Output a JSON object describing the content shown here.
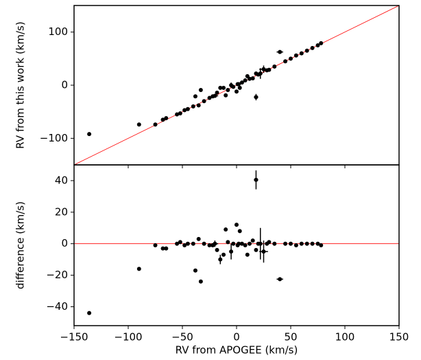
{
  "chart_data": [
    {
      "type": "scatter",
      "ylabel": "RV from this work (km/s)",
      "color": "#000000",
      "line_color": "#ff0000",
      "diagonal": true,
      "xlim": [
        -150,
        150
      ],
      "ylim": [
        -150,
        150
      ],
      "xticks": [
        -150,
        -100,
        -50,
        0,
        50,
        100,
        150
      ],
      "yticks": [
        {
          "value": -100,
          "label": "−100"
        },
        0,
        100
      ],
      "x": [
        -136,
        -90,
        -75,
        -68,
        -65,
        -55,
        -52,
        -48,
        -45,
        -40,
        -38,
        -35,
        -33,
        -30,
        -25,
        -22,
        -20,
        -18,
        -15,
        -12,
        -10,
        -8,
        -5,
        -3,
        0,
        1,
        2,
        3,
        5,
        8,
        10,
        12,
        15,
        18,
        18,
        20,
        22,
        25,
        28,
        30,
        35,
        40,
        45,
        50,
        55,
        60,
        65,
        70,
        75,
        78
      ],
      "values": [
        -92,
        -74,
        -74,
        -65,
        -62,
        -55,
        -53,
        -47,
        -45,
        -40,
        -21,
        -38,
        -9,
        -30,
        -24,
        -21,
        -20,
        -14,
        -5,
        -5,
        -19,
        -9,
        0,
        -3,
        -12,
        2,
        2,
        -5,
        5,
        9,
        17,
        12,
        13,
        -22.5,
        22,
        20,
        22,
        30,
        28,
        29,
        35,
        62.5,
        45,
        50,
        56,
        60,
        65,
        70,
        75,
        79
      ],
      "xerr": [
        null,
        null,
        null,
        null,
        null,
        null,
        null,
        null,
        null,
        null,
        null,
        null,
        null,
        null,
        null,
        null,
        3,
        null,
        null,
        null,
        null,
        null,
        null,
        null,
        null,
        null,
        null,
        null,
        null,
        null,
        null,
        null,
        null,
        2,
        null,
        null,
        2,
        4,
        null,
        null,
        null,
        3,
        null,
        null,
        null,
        null,
        null,
        null,
        null,
        null
      ],
      "yerr": [
        null,
        null,
        null,
        null,
        null,
        null,
        null,
        null,
        null,
        null,
        null,
        null,
        null,
        null,
        null,
        null,
        2,
        null,
        3,
        null,
        null,
        null,
        5,
        null,
        null,
        null,
        null,
        null,
        null,
        null,
        null,
        null,
        null,
        6,
        null,
        null,
        10,
        7,
        null,
        null,
        null,
        null,
        null,
        null,
        null,
        null,
        null,
        null,
        null,
        null
      ]
    },
    {
      "type": "scatter",
      "ylabel": "difference (km/s)",
      "xlabel": "RV from APOGEE (km/s)",
      "color": "#000000",
      "line_color": "#ff0000",
      "hline": 0,
      "xlim": [
        -150,
        150
      ],
      "ylim": [
        -52,
        50
      ],
      "xticks": [
        {
          "value": -150,
          "label": "−150"
        },
        {
          "value": -100,
          "label": "−100"
        },
        {
          "value": -50,
          "label": "−50"
        },
        0,
        50,
        100,
        150
      ],
      "yticks": [
        {
          "value": -40,
          "label": "−40"
        },
        {
          "value": -20,
          "label": "−20"
        },
        0,
        20,
        40
      ],
      "x": [
        -136,
        -90,
        -75,
        -68,
        -65,
        -55,
        -52,
        -48,
        -45,
        -40,
        -38,
        -35,
        -33,
        -30,
        -25,
        -22,
        -20,
        -18,
        -15,
        -12,
        -10,
        -8,
        -5,
        -3,
        0,
        1,
        2,
        3,
        5,
        8,
        10,
        12,
        15,
        18,
        18,
        20,
        22,
        25,
        28,
        30,
        35,
        40,
        45,
        50,
        55,
        60,
        65,
        70,
        75,
        78
      ],
      "values": [
        -44,
        -16,
        -1,
        -3,
        -3,
        0,
        1,
        -1,
        0,
        0,
        -17,
        3,
        -24,
        0,
        -1,
        -1,
        0,
        -4,
        -10,
        -7,
        9,
        1,
        -5,
        0,
        12,
        -1,
        0,
        8,
        0,
        -1,
        -7,
        0,
        2,
        40.5,
        -4,
        0,
        0,
        -5,
        0,
        1,
        0,
        -22.5,
        0,
        0,
        -1,
        0,
        0,
        0,
        0,
        -1
      ],
      "xerr": [
        null,
        null,
        null,
        null,
        null,
        null,
        null,
        null,
        null,
        null,
        null,
        null,
        null,
        null,
        null,
        null,
        3,
        null,
        null,
        null,
        null,
        null,
        null,
        null,
        null,
        null,
        null,
        null,
        null,
        null,
        null,
        null,
        null,
        2,
        null,
        null,
        2,
        4,
        null,
        null,
        null,
        3,
        null,
        null,
        null,
        null,
        null,
        null,
        null,
        null
      ],
      "yerr": [
        null,
        null,
        null,
        null,
        null,
        null,
        null,
        null,
        null,
        null,
        null,
        null,
        null,
        null,
        null,
        null,
        2,
        null,
        3,
        null,
        null,
        null,
        5,
        null,
        null,
        null,
        null,
        null,
        null,
        null,
        null,
        null,
        null,
        6,
        null,
        null,
        10,
        7,
        null,
        null,
        null,
        null,
        null,
        null,
        null,
        null,
        null,
        null,
        null,
        null
      ]
    }
  ]
}
